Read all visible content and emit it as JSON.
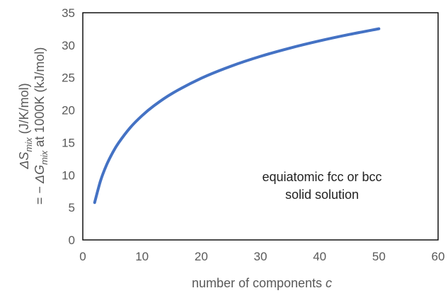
{
  "chart_data": {
    "type": "line",
    "x_label_prefix": "number of components ",
    "x_label_var": "c",
    "y_label_line1": {
      "prefix": "ΔS",
      "sub": "mix",
      "suffix": " (J/K/mol)"
    },
    "y_label_line2": {
      "prefix": "= − ΔG",
      "sub": "mix",
      "suffix": " at 1000K (kJ/mol)"
    },
    "annotation": [
      "equiatomic fcc or bcc",
      "solid solution"
    ],
    "xlim": [
      0,
      60
    ],
    "ylim": [
      0,
      35
    ],
    "x_ticks": [
      0,
      10,
      20,
      30,
      40,
      50,
      60
    ],
    "y_ticks": [
      0,
      5,
      10,
      15,
      20,
      25,
      30,
      35
    ],
    "grid": false,
    "legend": "none",
    "series": [
      {
        "color": "#4472C4",
        "x": [
          2,
          3,
          4,
          5,
          6,
          8,
          10,
          12,
          15,
          20,
          25,
          30,
          35,
          40,
          45,
          50
        ],
        "y": [
          5.76,
          9.13,
          11.53,
          13.38,
          14.9,
          17.29,
          19.14,
          20.66,
          22.52,
          24.91,
          26.76,
          28.28,
          29.56,
          30.67,
          31.65,
          32.53
        ]
      }
    ]
  }
}
